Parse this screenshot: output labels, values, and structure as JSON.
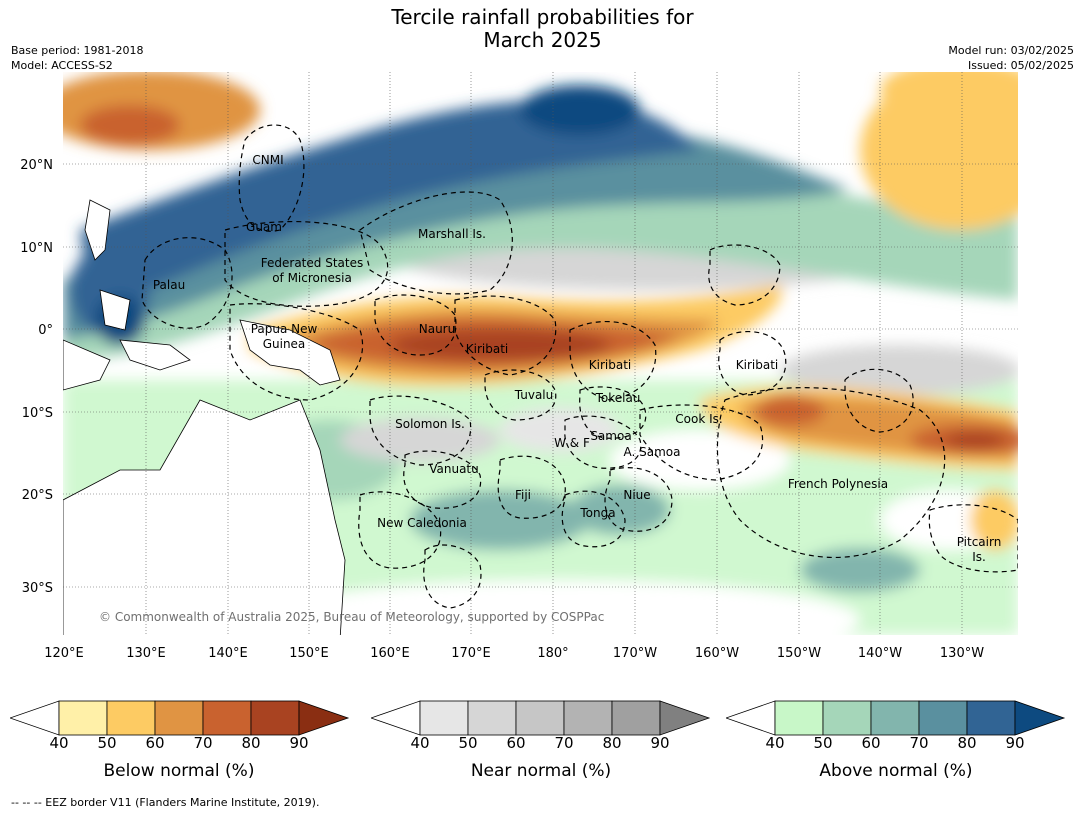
{
  "header": {
    "title_line1": "Tercile rainfall probabilities for",
    "title_line2": "March 2025",
    "base_period": "Base period: 1981-2018",
    "model": "Model: ACCESS-S2",
    "model_run": "Model run: 03/02/2025",
    "issued": "Issued: 05/02/2025"
  },
  "map": {
    "credit": "© Commonwealth of Australia 2025, Bureau of Meteorology, supported by COSPPac",
    "lat_labels": [
      "20°N",
      "10°N",
      "0°",
      "10°S",
      "20°S",
      "30°S"
    ],
    "lon_labels": [
      "120°E",
      "130°E",
      "140°E",
      "150°E",
      "160°E",
      "170°E",
      "180°",
      "170°W",
      "160°W",
      "150°W",
      "140°W",
      "130°W"
    ],
    "regions": [
      "CNMI",
      "Guam",
      "Marshall Is.",
      "Federated States",
      "of Micronesia",
      "Palau",
      "Papua New",
      "Guinea",
      "Nauru",
      "Kiribati",
      "Kiribati",
      "Kiribati",
      "Tuvalu",
      "Tokelau",
      "Solomon Is.",
      "Samoa",
      "W & F",
      "A. Samoa",
      "Cook Is.",
      "Vanuatu",
      "Fiji",
      "Niue",
      "Tonga",
      "New Caledonia",
      "French Polynesia",
      "Pitcairn",
      "Is."
    ]
  },
  "legend": {
    "ticks": [
      "40",
      "50",
      "60",
      "70",
      "80",
      "90"
    ],
    "below": {
      "label": "Below normal (%)",
      "colors": [
        "#fff0a8",
        "#fdcb63",
        "#e09443",
        "#c9622f",
        "#a94321",
        "#8a2e12"
      ]
    },
    "near": {
      "label": "Near normal (%)",
      "colors": [
        "#e6e6e6",
        "#d6d6d6",
        "#c6c6c6",
        "#b3b3b3",
        "#a0a0a0",
        "#808080"
      ]
    },
    "above": {
      "label": "Above normal (%)",
      "colors": [
        "#c8f7c8",
        "#a5d6b9",
        "#82b5ad",
        "#5a909f",
        "#316494",
        "#0d4a80"
      ]
    }
  },
  "footnote": "--  --  -- EEZ border V11 (Flanders Marine Institute, 2019)."
}
